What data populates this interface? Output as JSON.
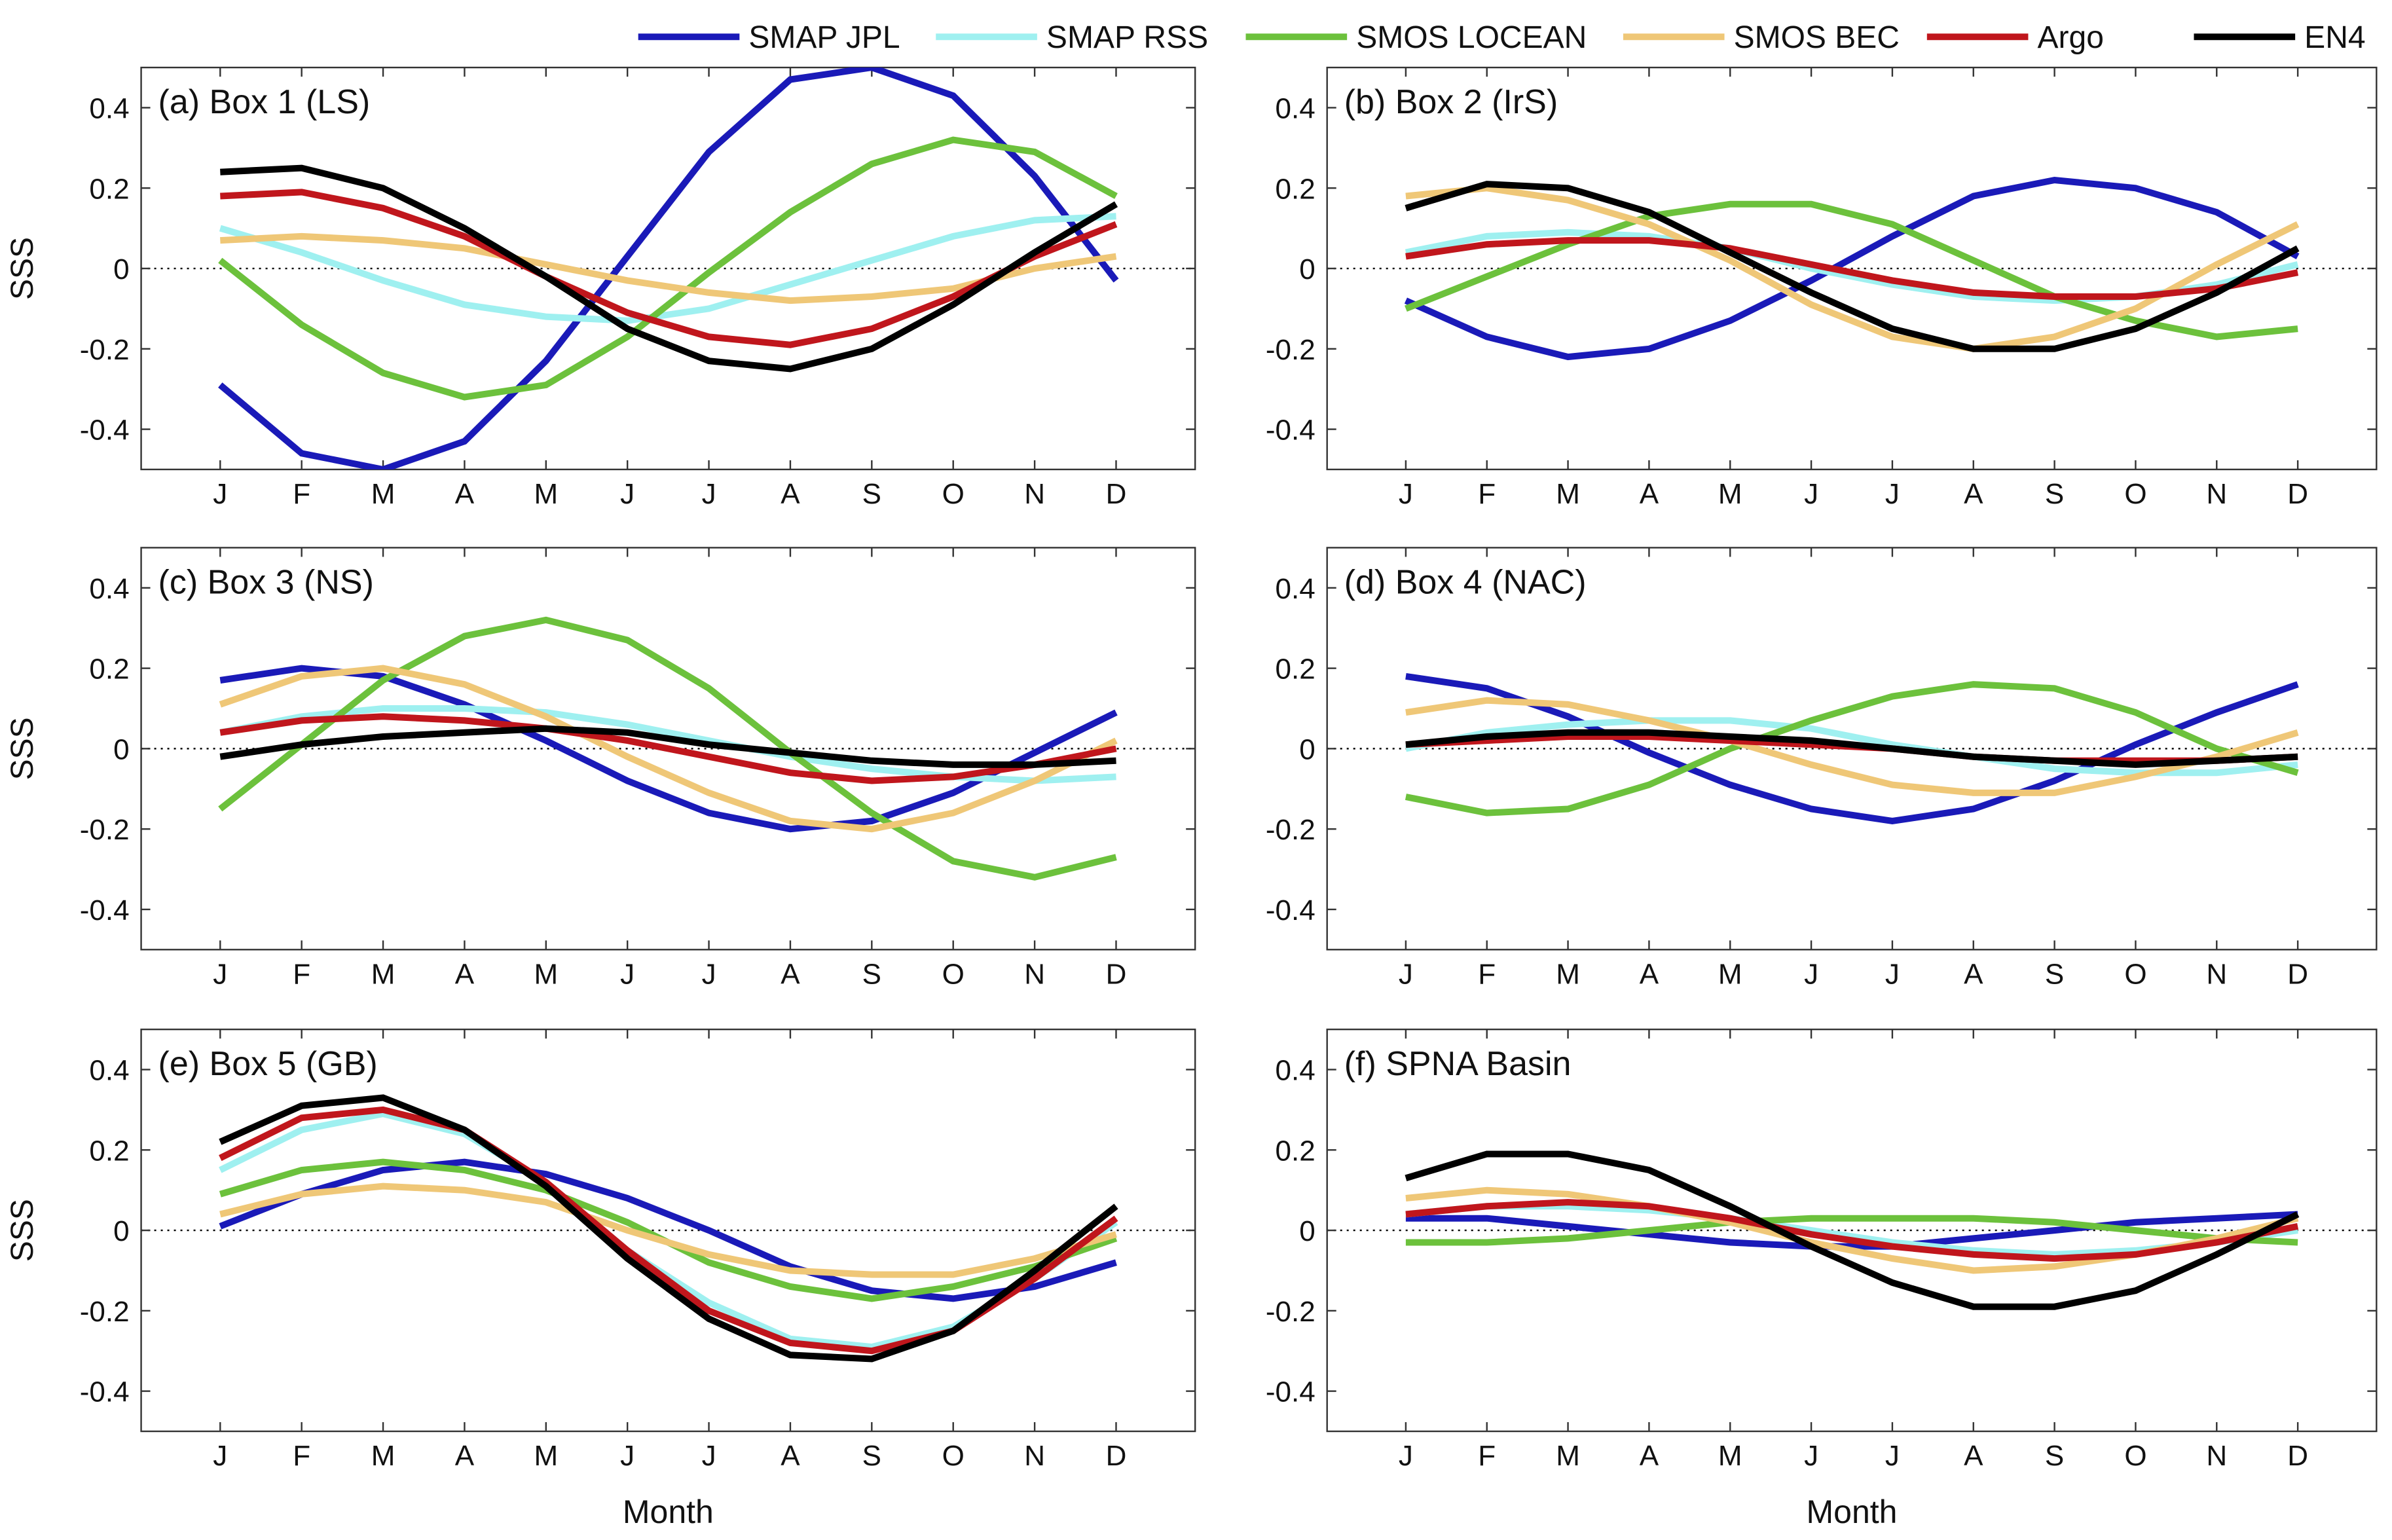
{
  "chart_data": {
    "type": "line",
    "months": [
      "J",
      "F",
      "M",
      "A",
      "M",
      "J",
      "J",
      "A",
      "S",
      "O",
      "N",
      "D"
    ],
    "ylabel": "SSS",
    "xlabel": "Month",
    "ylim": [
      -0.5,
      0.5
    ],
    "yticks": [
      "-0.4",
      "-0.2",
      "0",
      "0.2",
      "0.4"
    ],
    "zero_line": "dotted",
    "legend_position": "top",
    "legend": [
      {
        "name": "SMAP JPL",
        "color": "#1a1ab8"
      },
      {
        "name": "SMAP RSS",
        "color": "#9ff0f0"
      },
      {
        "name": "SMOS LOCEAN",
        "color": "#6cc13c"
      },
      {
        "name": "SMOS BEC",
        "color": "#efc777"
      },
      {
        "name": "Argo",
        "color": "#c0161c"
      },
      {
        "name": "EN4",
        "color": "#000000"
      }
    ],
    "panels": [
      {
        "title": "(a) Box 1 (LS)",
        "series": [
          {
            "name": "SMAP JPL",
            "values": [
              -0.29,
              -0.46,
              -0.5,
              -0.43,
              -0.23,
              0.03,
              0.29,
              0.47,
              0.51,
              0.43,
              0.23,
              -0.03
            ]
          },
          {
            "name": "SMAP RSS",
            "values": [
              0.1,
              0.04,
              -0.03,
              -0.09,
              -0.12,
              -0.13,
              -0.1,
              -0.04,
              0.02,
              0.08,
              0.12,
              0.13
            ]
          },
          {
            "name": "SMOS LOCEAN",
            "values": [
              0.02,
              -0.14,
              -0.26,
              -0.32,
              -0.29,
              -0.17,
              -0.01,
              0.14,
              0.26,
              0.32,
              0.29,
              0.18
            ]
          },
          {
            "name": "SMOS BEC",
            "values": [
              0.07,
              0.08,
              0.07,
              0.05,
              0.01,
              -0.03,
              -0.06,
              -0.08,
              -0.07,
              -0.05,
              0.0,
              0.03
            ]
          },
          {
            "name": "Argo",
            "values": [
              0.18,
              0.19,
              0.15,
              0.08,
              -0.02,
              -0.11,
              -0.17,
              -0.19,
              -0.15,
              -0.07,
              0.03,
              0.11
            ]
          },
          {
            "name": "EN4",
            "values": [
              0.24,
              0.25,
              0.2,
              0.1,
              -0.02,
              -0.15,
              -0.23,
              -0.25,
              -0.2,
              -0.09,
              0.04,
              0.16
            ]
          }
        ]
      },
      {
        "title": "(b) Box 2 (IrS)",
        "series": [
          {
            "name": "SMAP JPL",
            "values": [
              -0.08,
              -0.17,
              -0.22,
              -0.2,
              -0.13,
              -0.03,
              0.08,
              0.18,
              0.22,
              0.2,
              0.14,
              0.03
            ]
          },
          {
            "name": "SMAP RSS",
            "values": [
              0.04,
              0.08,
              0.09,
              0.08,
              0.05,
              0.0,
              -0.04,
              -0.07,
              -0.08,
              -0.07,
              -0.04,
              0.01
            ]
          },
          {
            "name": "SMOS LOCEAN",
            "values": [
              -0.1,
              -0.02,
              0.06,
              0.13,
              0.16,
              0.16,
              0.11,
              0.02,
              -0.07,
              -0.13,
              -0.17,
              -0.15
            ]
          },
          {
            "name": "SMOS BEC",
            "values": [
              0.18,
              0.2,
              0.17,
              0.11,
              0.02,
              -0.09,
              -0.17,
              -0.2,
              -0.17,
              -0.1,
              0.01,
              0.11
            ]
          },
          {
            "name": "Argo",
            "values": [
              0.03,
              0.06,
              0.07,
              0.07,
              0.05,
              0.01,
              -0.03,
              -0.06,
              -0.07,
              -0.07,
              -0.05,
              -0.01
            ]
          },
          {
            "name": "EN4",
            "values": [
              0.15,
              0.21,
              0.2,
              0.14,
              0.04,
              -0.06,
              -0.15,
              -0.2,
              -0.2,
              -0.15,
              -0.06,
              0.05
            ]
          }
        ]
      },
      {
        "title": "(c) Box 3 (NS)",
        "series": [
          {
            "name": "SMAP JPL",
            "values": [
              0.17,
              0.2,
              0.18,
              0.11,
              0.02,
              -0.08,
              -0.16,
              -0.2,
              -0.18,
              -0.11,
              -0.01,
              0.09
            ]
          },
          {
            "name": "SMAP RSS",
            "values": [
              0.04,
              0.08,
              0.1,
              0.1,
              0.09,
              0.06,
              0.02,
              -0.02,
              -0.05,
              -0.07,
              -0.08,
              -0.07
            ]
          },
          {
            "name": "SMOS LOCEAN",
            "values": [
              -0.15,
              0.01,
              0.17,
              0.28,
              0.32,
              0.27,
              0.15,
              -0.01,
              -0.16,
              -0.28,
              -0.32,
              -0.27
            ]
          },
          {
            "name": "SMOS BEC",
            "values": [
              0.11,
              0.18,
              0.2,
              0.16,
              0.08,
              -0.02,
              -0.11,
              -0.18,
              -0.2,
              -0.16,
              -0.08,
              0.02
            ]
          },
          {
            "name": "Argo",
            "values": [
              0.04,
              0.07,
              0.08,
              0.07,
              0.05,
              0.02,
              -0.02,
              -0.06,
              -0.08,
              -0.07,
              -0.04,
              0.0
            ]
          },
          {
            "name": "EN4",
            "values": [
              -0.02,
              0.01,
              0.03,
              0.04,
              0.05,
              0.04,
              0.01,
              -0.01,
              -0.03,
              -0.04,
              -0.04,
              -0.03
            ]
          }
        ]
      },
      {
        "title": "(d) Box 4 (NAC)",
        "series": [
          {
            "name": "SMAP JPL",
            "values": [
              0.18,
              0.15,
              0.08,
              -0.01,
              -0.09,
              -0.15,
              -0.18,
              -0.15,
              -0.08,
              0.01,
              0.09,
              0.16
            ]
          },
          {
            "name": "SMAP RSS",
            "values": [
              0.0,
              0.04,
              0.06,
              0.07,
              0.07,
              0.05,
              0.01,
              -0.02,
              -0.05,
              -0.06,
              -0.06,
              -0.04
            ]
          },
          {
            "name": "SMOS LOCEAN",
            "values": [
              -0.12,
              -0.16,
              -0.15,
              -0.09,
              0.0,
              0.07,
              0.13,
              0.16,
              0.15,
              0.09,
              0.0,
              -0.06
            ]
          },
          {
            "name": "SMOS BEC",
            "values": [
              0.09,
              0.12,
              0.11,
              0.07,
              0.02,
              -0.04,
              -0.09,
              -0.11,
              -0.11,
              -0.07,
              -0.02,
              0.04
            ]
          },
          {
            "name": "Argo",
            "values": [
              0.01,
              0.02,
              0.03,
              0.03,
              0.02,
              0.01,
              0.0,
              -0.02,
              -0.03,
              -0.03,
              -0.03,
              -0.02
            ]
          },
          {
            "name": "EN4",
            "values": [
              0.01,
              0.03,
              0.04,
              0.04,
              0.03,
              0.02,
              0.0,
              -0.02,
              -0.03,
              -0.04,
              -0.03,
              -0.02
            ]
          }
        ]
      },
      {
        "title": "(e) Box 5 (GB)",
        "series": [
          {
            "name": "SMAP JPL",
            "values": [
              0.01,
              0.09,
              0.15,
              0.17,
              0.14,
              0.08,
              0.0,
              -0.09,
              -0.15,
              -0.17,
              -0.14,
              -0.08
            ]
          },
          {
            "name": "SMAP RSS",
            "values": [
              0.15,
              0.25,
              0.29,
              0.24,
              0.12,
              -0.05,
              -0.18,
              -0.27,
              -0.29,
              -0.24,
              -0.12,
              0.02
            ]
          },
          {
            "name": "SMOS LOCEAN",
            "values": [
              0.09,
              0.15,
              0.17,
              0.15,
              0.1,
              0.02,
              -0.08,
              -0.14,
              -0.17,
              -0.14,
              -0.09,
              -0.02
            ]
          },
          {
            "name": "SMOS BEC",
            "values": [
              0.04,
              0.09,
              0.11,
              0.1,
              0.07,
              0.0,
              -0.06,
              -0.1,
              -0.11,
              -0.11,
              -0.07,
              -0.01
            ]
          },
          {
            "name": "Argo",
            "values": [
              0.18,
              0.28,
              0.3,
              0.25,
              0.12,
              -0.05,
              -0.2,
              -0.28,
              -0.3,
              -0.25,
              -0.12,
              0.03
            ]
          },
          {
            "name": "EN4",
            "values": [
              0.22,
              0.31,
              0.33,
              0.25,
              0.11,
              -0.07,
              -0.22,
              -0.31,
              -0.32,
              -0.25,
              -0.1,
              0.06
            ]
          }
        ]
      },
      {
        "title": "(f) SPNA Basin",
        "series": [
          {
            "name": "SMAP JPL",
            "values": [
              0.03,
              0.03,
              0.01,
              -0.01,
              -0.03,
              -0.04,
              -0.04,
              -0.02,
              0.0,
              0.02,
              0.03,
              0.04
            ]
          },
          {
            "name": "SMAP RSS",
            "values": [
              0.04,
              0.06,
              0.06,
              0.05,
              0.03,
              0.0,
              -0.03,
              -0.05,
              -0.06,
              -0.05,
              -0.03,
              0.0
            ]
          },
          {
            "name": "SMOS LOCEAN",
            "values": [
              -0.03,
              -0.03,
              -0.02,
              0.0,
              0.02,
              0.03,
              0.03,
              0.03,
              0.02,
              0.0,
              -0.02,
              -0.03
            ]
          },
          {
            "name": "SMOS BEC",
            "values": [
              0.08,
              0.1,
              0.09,
              0.06,
              0.02,
              -0.03,
              -0.07,
              -0.1,
              -0.09,
              -0.06,
              -0.02,
              0.03
            ]
          },
          {
            "name": "Argo",
            "values": [
              0.04,
              0.06,
              0.07,
              0.06,
              0.03,
              -0.01,
              -0.04,
              -0.06,
              -0.07,
              -0.06,
              -0.03,
              0.01
            ]
          },
          {
            "name": "EN4",
            "values": [
              0.13,
              0.19,
              0.19,
              0.15,
              0.06,
              -0.04,
              -0.13,
              -0.19,
              -0.19,
              -0.15,
              -0.06,
              0.04
            ]
          }
        ]
      }
    ]
  }
}
